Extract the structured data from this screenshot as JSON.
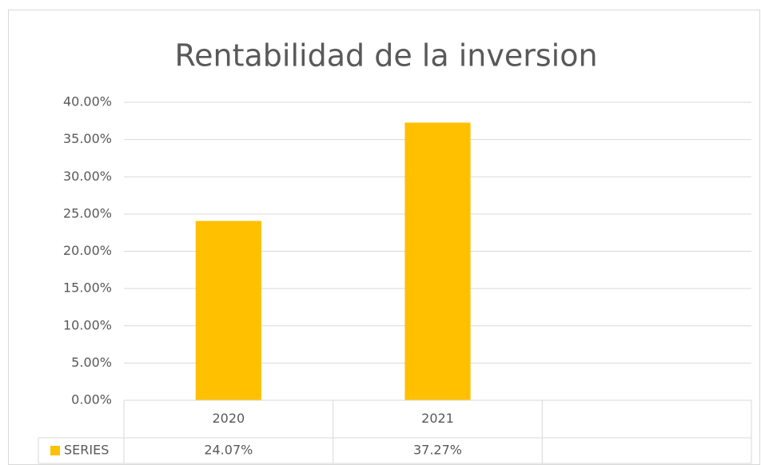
{
  "chart_data": {
    "type": "bar",
    "title": "Rentabilidad de la inversion",
    "categories": [
      "2020",
      "2021",
      null
    ],
    "series": [
      {
        "name": "SERIES",
        "color": "#ffc000",
        "values": [
          24.07,
          37.27,
          null
        ],
        "value_labels": [
          "24.07%",
          "37.27%",
          null
        ]
      }
    ],
    "ylim": [
      0,
      40
    ],
    "yticks": [
      {
        "value": 0,
        "label": "0.00%"
      },
      {
        "value": 5,
        "label": "5.00%"
      },
      {
        "value": 10,
        "label": "10.00%"
      },
      {
        "value": 15,
        "label": "15.00%"
      },
      {
        "value": 20,
        "label": "20.00%"
      },
      {
        "value": 25,
        "label": "25.00%"
      },
      {
        "value": 30,
        "label": "30.00%"
      },
      {
        "value": 35,
        "label": "35.00%"
      },
      {
        "value": 40,
        "label": "40.00%"
      }
    ],
    "grid": true,
    "data_table": true
  }
}
